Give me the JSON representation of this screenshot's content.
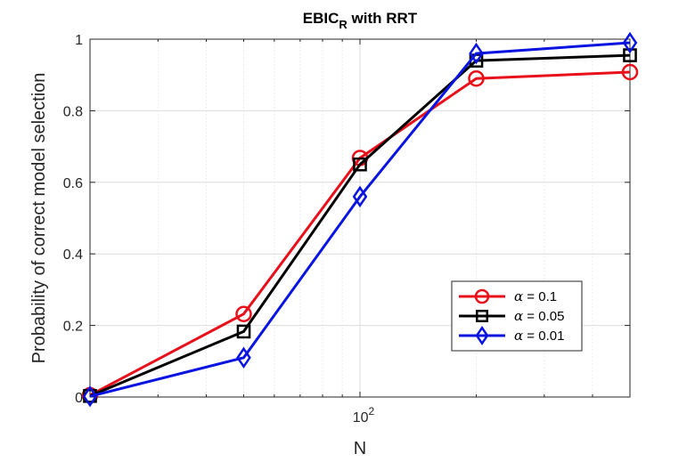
{
  "chart_data": {
    "type": "line",
    "title_main": "EBIC",
    "title_sub": "R",
    "title_rest": " with RRT",
    "xlabel": "N",
    "ylabel": "Probability of correct model selection",
    "xscale": "log",
    "xlim": [
      20,
      500
    ],
    "ylim": [
      0,
      1
    ],
    "x": [
      20,
      50,
      100,
      200,
      500
    ],
    "x_ticks": [
      {
        "value": 100,
        "base": "10",
        "exp": "2"
      }
    ],
    "y_ticks": [
      0,
      0.2,
      0.4,
      0.6,
      0.8,
      1
    ],
    "y_tick_labels": [
      "0",
      "0.2",
      "0.4",
      "0.6",
      "0.8",
      "1"
    ],
    "grid": true,
    "legend_position": "bottom-right",
    "series": [
      {
        "name": "= 0.1",
        "symbol": "α",
        "color": "#e8101a",
        "marker": "circle",
        "values": [
          0.005,
          0.232,
          0.668,
          0.89,
          0.908
        ]
      },
      {
        "name": "= 0.05",
        "symbol": "α",
        "color": "#000000",
        "marker": "square",
        "values": [
          0.003,
          0.183,
          0.65,
          0.94,
          0.955
        ]
      },
      {
        "name": "= 0.01",
        "symbol": "α",
        "color": "#0a14e0",
        "marker": "diamond",
        "values": [
          0.002,
          0.11,
          0.56,
          0.96,
          0.99
        ]
      }
    ]
  }
}
